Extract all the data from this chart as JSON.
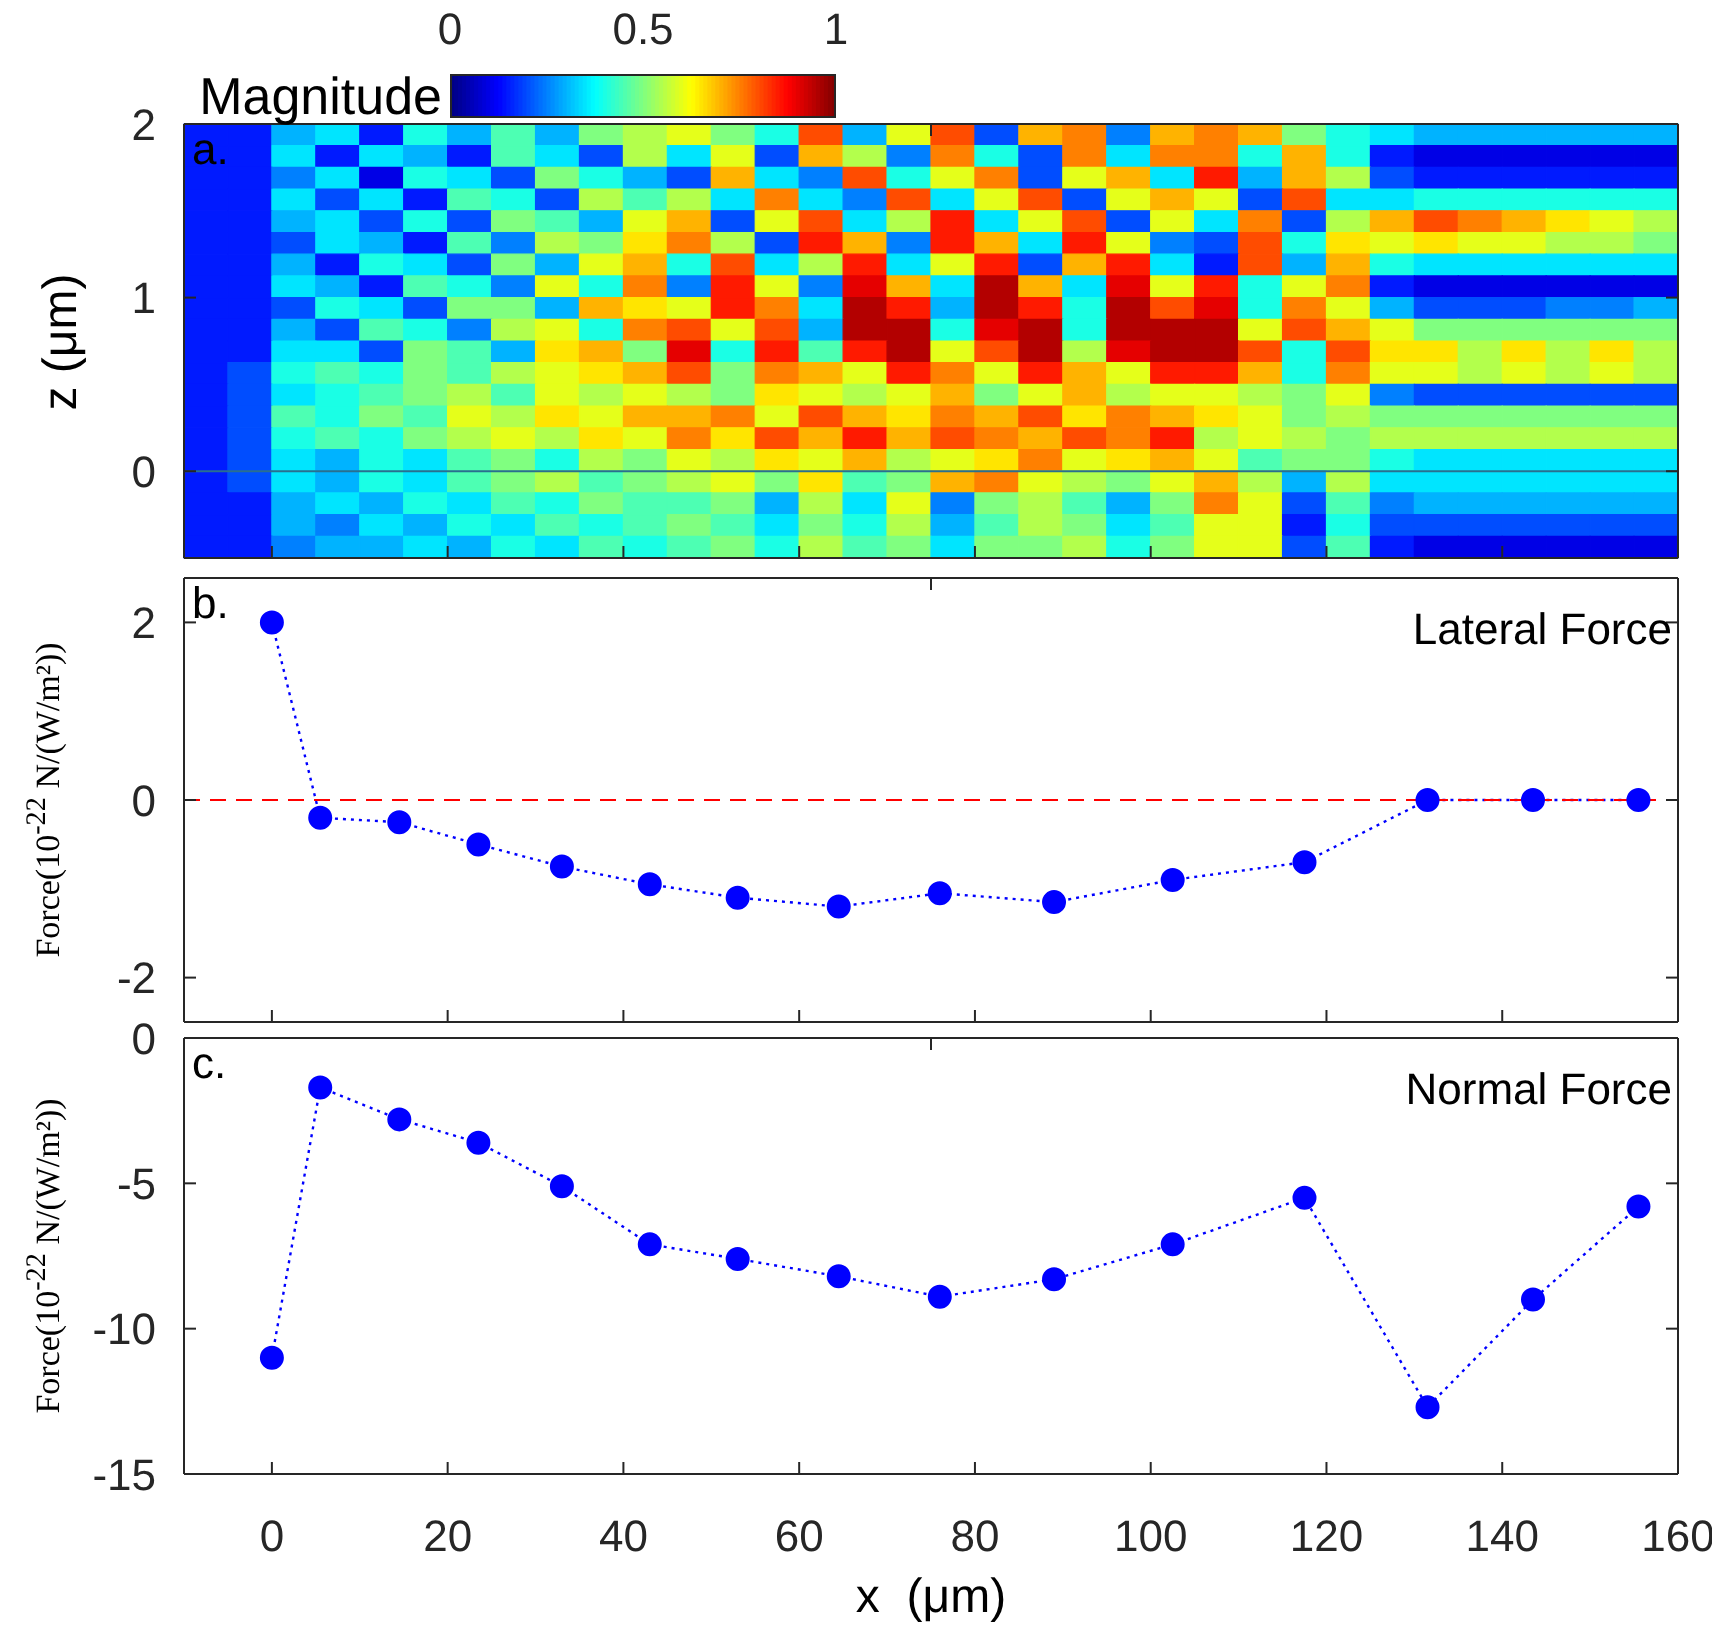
{
  "chart_data": [
    {
      "type": "heatmap",
      "ylabel": "z (μm)",
      "clabel": "Magnitude",
      "annotations": [
        "a."
      ],
      "xlim": [
        -10,
        160
      ],
      "xticks": [
        0,
        20,
        40,
        60,
        80,
        100,
        120,
        140,
        160
      ],
      "ylim": [
        -0.5,
        2
      ],
      "yticks": [
        0,
        1,
        2
      ],
      "tick_labels": "y",
      "clim": [
        0,
        1
      ],
      "cticks": [
        0,
        0.5,
        1
      ],
      "ref_lines": [
        {
          "axis": "y",
          "value": 0,
          "color": "#2a6f8f"
        }
      ],
      "cells": [
        [
          0.15,
          0.15,
          0.3,
          0.35,
          0.15,
          0.4,
          0.3,
          0.45,
          0.3,
          0.5,
          0.55,
          0.6,
          0.5,
          0.4,
          0.8,
          0.3,
          0.6,
          0.8,
          0.2,
          0.7,
          0.75,
          0.25,
          0.7,
          0.75,
          0.7,
          0.5,
          0.4,
          0.35,
          0.3,
          0.3,
          0.3,
          0.3,
          0.3,
          0.3
        ],
        [
          0.15,
          0.15,
          0.35,
          0.15,
          0.35,
          0.3,
          0.15,
          0.45,
          0.35,
          0.2,
          0.55,
          0.35,
          0.6,
          0.2,
          0.7,
          0.55,
          0.25,
          0.75,
          0.4,
          0.2,
          0.75,
          0.35,
          0.75,
          0.75,
          0.4,
          0.7,
          0.4,
          0.15,
          0.1,
          0.1,
          0.1,
          0.1,
          0.1,
          0.1
        ],
        [
          0.15,
          0.15,
          0.25,
          0.35,
          0.1,
          0.4,
          0.35,
          0.2,
          0.5,
          0.4,
          0.3,
          0.2,
          0.7,
          0.35,
          0.25,
          0.8,
          0.4,
          0.6,
          0.75,
          0.2,
          0.6,
          0.7,
          0.35,
          0.85,
          0.3,
          0.7,
          0.55,
          0.2,
          0.15,
          0.15,
          0.15,
          0.15,
          0.15,
          0.15
        ],
        [
          0.15,
          0.15,
          0.35,
          0.2,
          0.35,
          0.15,
          0.45,
          0.4,
          0.2,
          0.55,
          0.45,
          0.55,
          0.35,
          0.75,
          0.35,
          0.25,
          0.8,
          0.35,
          0.6,
          0.8,
          0.2,
          0.6,
          0.7,
          0.6,
          0.2,
          0.8,
          0.35,
          0.35,
          0.4,
          0.4,
          0.4,
          0.4,
          0.4,
          0.4
        ],
        [
          0.15,
          0.15,
          0.3,
          0.35,
          0.2,
          0.4,
          0.2,
          0.5,
          0.45,
          0.3,
          0.6,
          0.7,
          0.2,
          0.6,
          0.8,
          0.35,
          0.55,
          0.85,
          0.35,
          0.6,
          0.8,
          0.2,
          0.6,
          0.35,
          0.75,
          0.2,
          0.55,
          0.7,
          0.8,
          0.75,
          0.7,
          0.65,
          0.6,
          0.55
        ],
        [
          0.15,
          0.15,
          0.2,
          0.35,
          0.3,
          0.15,
          0.45,
          0.25,
          0.55,
          0.5,
          0.65,
          0.75,
          0.55,
          0.2,
          0.85,
          0.7,
          0.25,
          0.85,
          0.7,
          0.35,
          0.85,
          0.6,
          0.25,
          0.2,
          0.8,
          0.4,
          0.65,
          0.6,
          0.65,
          0.6,
          0.6,
          0.55,
          0.55,
          0.5
        ],
        [
          0.15,
          0.15,
          0.3,
          0.15,
          0.4,
          0.35,
          0.2,
          0.5,
          0.3,
          0.6,
          0.7,
          0.4,
          0.8,
          0.35,
          0.55,
          0.85,
          0.35,
          0.6,
          0.85,
          0.2,
          0.7,
          0.85,
          0.35,
          0.15,
          0.8,
          0.3,
          0.7,
          0.4,
          0.35,
          0.35,
          0.35,
          0.35,
          0.35,
          0.35
        ],
        [
          0.15,
          0.15,
          0.35,
          0.3,
          0.15,
          0.45,
          0.4,
          0.25,
          0.6,
          0.4,
          0.75,
          0.25,
          0.85,
          0.6,
          0.25,
          0.9,
          0.7,
          0.35,
          0.95,
          0.7,
          0.35,
          0.9,
          0.6,
          0.85,
          0.4,
          0.6,
          0.75,
          0.15,
          0.1,
          0.1,
          0.1,
          0.1,
          0.1,
          0.1
        ],
        [
          0.15,
          0.15,
          0.2,
          0.4,
          0.35,
          0.2,
          0.5,
          0.5,
          0.3,
          0.7,
          0.65,
          0.6,
          0.85,
          0.75,
          0.35,
          0.95,
          0.85,
          0.3,
          0.95,
          0.85,
          0.4,
          0.95,
          0.8,
          0.9,
          0.4,
          0.75,
          0.6,
          0.3,
          0.2,
          0.2,
          0.2,
          0.25,
          0.25,
          0.3
        ],
        [
          0.15,
          0.15,
          0.3,
          0.2,
          0.45,
          0.4,
          0.25,
          0.55,
          0.6,
          0.4,
          0.75,
          0.8,
          0.6,
          0.8,
          0.3,
          0.95,
          0.95,
          0.4,
          0.9,
          0.95,
          0.4,
          0.95,
          0.95,
          0.95,
          0.6,
          0.8,
          0.7,
          0.6,
          0.5,
          0.5,
          0.5,
          0.5,
          0.5,
          0.5
        ],
        [
          0.15,
          0.15,
          0.35,
          0.35,
          0.2,
          0.5,
          0.45,
          0.3,
          0.65,
          0.7,
          0.5,
          0.9,
          0.4,
          0.85,
          0.45,
          0.85,
          0.95,
          0.6,
          0.8,
          0.95,
          0.55,
          0.9,
          0.95,
          0.95,
          0.8,
          0.4,
          0.8,
          0.65,
          0.65,
          0.55,
          0.65,
          0.55,
          0.65,
          0.55
        ],
        [
          0.15,
          0.2,
          0.4,
          0.45,
          0.4,
          0.5,
          0.45,
          0.55,
          0.6,
          0.65,
          0.7,
          0.8,
          0.5,
          0.75,
          0.7,
          0.6,
          0.85,
          0.75,
          0.6,
          0.85,
          0.7,
          0.6,
          0.85,
          0.85,
          0.7,
          0.4,
          0.75,
          0.6,
          0.6,
          0.55,
          0.6,
          0.55,
          0.6,
          0.55
        ],
        [
          0.15,
          0.2,
          0.35,
          0.4,
          0.45,
          0.5,
          0.55,
          0.45,
          0.6,
          0.55,
          0.6,
          0.55,
          0.5,
          0.65,
          0.6,
          0.55,
          0.6,
          0.7,
          0.5,
          0.6,
          0.7,
          0.55,
          0.6,
          0.6,
          0.55,
          0.5,
          0.6,
          0.25,
          0.2,
          0.2,
          0.2,
          0.2,
          0.2,
          0.2
        ],
        [
          0.15,
          0.2,
          0.45,
          0.4,
          0.5,
          0.45,
          0.6,
          0.55,
          0.65,
          0.6,
          0.7,
          0.7,
          0.75,
          0.6,
          0.8,
          0.7,
          0.65,
          0.75,
          0.7,
          0.8,
          0.65,
          0.75,
          0.7,
          0.65,
          0.6,
          0.5,
          0.55,
          0.5,
          0.5,
          0.5,
          0.5,
          0.5,
          0.5,
          0.5
        ],
        [
          0.15,
          0.2,
          0.4,
          0.45,
          0.4,
          0.5,
          0.55,
          0.6,
          0.55,
          0.65,
          0.6,
          0.75,
          0.65,
          0.8,
          0.7,
          0.85,
          0.7,
          0.8,
          0.75,
          0.7,
          0.8,
          0.75,
          0.85,
          0.55,
          0.6,
          0.55,
          0.5,
          0.55,
          0.55,
          0.55,
          0.55,
          0.55,
          0.55,
          0.55
        ],
        [
          0.15,
          0.2,
          0.35,
          0.3,
          0.4,
          0.35,
          0.45,
          0.5,
          0.4,
          0.55,
          0.5,
          0.6,
          0.55,
          0.65,
          0.6,
          0.7,
          0.55,
          0.6,
          0.65,
          0.75,
          0.6,
          0.65,
          0.7,
          0.6,
          0.45,
          0.5,
          0.5,
          0.4,
          0.35,
          0.35,
          0.35,
          0.35,
          0.35,
          0.35
        ],
        [
          0.15,
          0.2,
          0.35,
          0.3,
          0.4,
          0.35,
          0.45,
          0.5,
          0.55,
          0.45,
          0.5,
          0.55,
          0.6,
          0.5,
          0.65,
          0.45,
          0.5,
          0.7,
          0.75,
          0.6,
          0.55,
          0.5,
          0.6,
          0.7,
          0.55,
          0.3,
          0.55,
          0.35,
          0.35,
          0.35,
          0.35,
          0.35,
          0.35,
          0.35
        ],
        [
          0.15,
          0.15,
          0.3,
          0.35,
          0.3,
          0.4,
          0.35,
          0.45,
          0.4,
          0.5,
          0.45,
          0.45,
          0.5,
          0.3,
          0.55,
          0.35,
          0.6,
          0.25,
          0.5,
          0.55,
          0.45,
          0.3,
          0.5,
          0.75,
          0.6,
          0.2,
          0.45,
          0.25,
          0.3,
          0.3,
          0.3,
          0.3,
          0.3,
          0.3
        ],
        [
          0.15,
          0.15,
          0.3,
          0.25,
          0.35,
          0.3,
          0.4,
          0.35,
          0.45,
          0.4,
          0.45,
          0.5,
          0.45,
          0.35,
          0.5,
          0.4,
          0.55,
          0.3,
          0.45,
          0.55,
          0.5,
          0.35,
          0.45,
          0.6,
          0.6,
          0.15,
          0.4,
          0.2,
          0.2,
          0.2,
          0.2,
          0.2,
          0.2,
          0.2
        ],
        [
          0.15,
          0.15,
          0.25,
          0.3,
          0.3,
          0.35,
          0.3,
          0.4,
          0.35,
          0.45,
          0.4,
          0.45,
          0.5,
          0.4,
          0.55,
          0.45,
          0.5,
          0.35,
          0.5,
          0.5,
          0.55,
          0.4,
          0.5,
          0.6,
          0.6,
          0.2,
          0.45,
          0.15,
          0.1,
          0.1,
          0.1,
          0.1,
          0.1,
          0.1
        ]
      ]
    },
    {
      "type": "line",
      "annotations": [
        "b.",
        "Lateral Force"
      ],
      "ylabel": "Force(10$^{-22}$ N/(W/m²))",
      "x": [
        0,
        5.5,
        14.5,
        23.5,
        33,
        43,
        53,
        64.5,
        76,
        89,
        102.5,
        117.5,
        131.5,
        143.5,
        155.5
      ],
      "series": [
        {
          "color": "#0000ff",
          "values": [
            2,
            -0.2,
            -0.25,
            -0.5,
            -0.75,
            -0.95,
            -1.1,
            -1.2,
            -1.05,
            -1.15,
            -0.9,
            -0.7,
            0,
            0,
            0
          ]
        }
      ],
      "marker": "circle",
      "line_style": "dotted",
      "xlim": [
        -10,
        160
      ],
      "xticks": [
        0,
        20,
        40,
        60,
        80,
        100,
        120,
        140,
        160
      ],
      "ylim": [
        -2.5,
        2.5
      ],
      "yticks": [
        -2,
        0,
        2
      ],
      "tick_labels": "y",
      "ref_lines": [
        {
          "axis": "y",
          "value": 0,
          "color": "#ff0000",
          "line_style": "dashed"
        }
      ]
    },
    {
      "type": "line",
      "annotations": [
        "c.",
        "Normal Force"
      ],
      "xlabel": "x  (μm)",
      "ylabel": "Force(10$^{-22}$ N/(W/m²))",
      "x": [
        0,
        5.5,
        14.5,
        23.5,
        33,
        43,
        53,
        64.5,
        76,
        89,
        102.5,
        117.5,
        131.5,
        143.5,
        155.5
      ],
      "series": [
        {
          "color": "#0000ff",
          "values": [
            -11,
            -1.7,
            -2.8,
            -3.6,
            -5.1,
            -7.1,
            -7.6,
            -8.2,
            -8.9,
            -8.3,
            -7.1,
            -5.5,
            -12.7,
            -9,
            -5.8
          ]
        }
      ],
      "marker": "circle",
      "line_style": "dotted",
      "xlim": [
        -10,
        160
      ],
      "xticks": [
        0,
        20,
        40,
        60,
        80,
        100,
        120,
        140,
        160
      ],
      "ylim": [
        -15,
        0
      ],
      "yticks": [
        -15,
        -10,
        -5,
        0
      ]
    }
  ]
}
